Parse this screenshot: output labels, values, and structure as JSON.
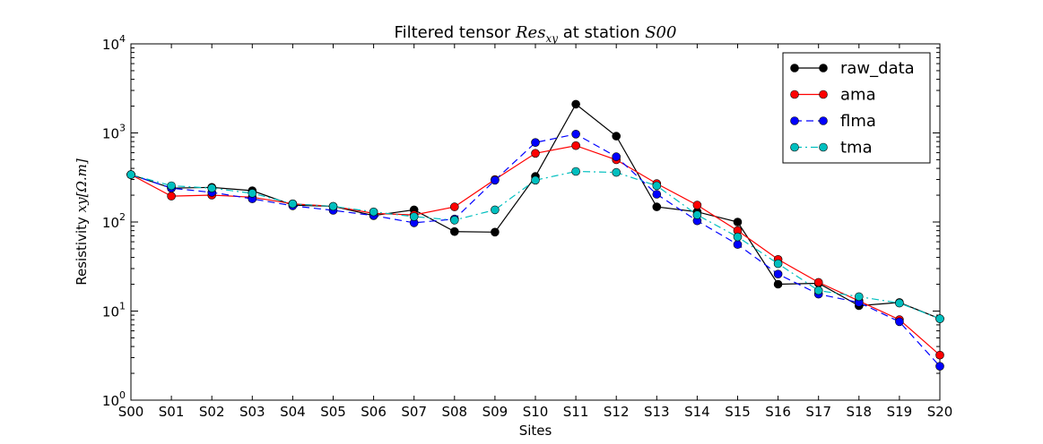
{
  "chart_data": {
    "type": "line",
    "title_prefix": "Filtered tensor ",
    "title_math": "Res",
    "title_math_sub": "xy",
    "title_mid": " at station ",
    "title_station": "S00",
    "xlabel": "Sites",
    "ylabel_prefix": "Resistivity ",
    "ylabel_math": "xy[Ω.m]",
    "y_scale": "log",
    "ylim": [
      1,
      10000
    ],
    "y_ticks": [
      {
        "value": 1,
        "base": "10",
        "exp": "0"
      },
      {
        "value": 10,
        "base": "10",
        "exp": "1"
      },
      {
        "value": 100,
        "base": "10",
        "exp": "2"
      },
      {
        "value": 1000,
        "base": "10",
        "exp": "3"
      },
      {
        "value": 10000,
        "base": "10",
        "exp": "4"
      }
    ],
    "categories": [
      "S00",
      "S01",
      "S02",
      "S03",
      "S04",
      "S05",
      "S06",
      "S07",
      "S08",
      "S09",
      "S10",
      "S11",
      "S12",
      "S13",
      "S14",
      "S15",
      "S16",
      "S17",
      "S18",
      "S19",
      "S20"
    ],
    "legend_position": "top-right",
    "grid": false,
    "series": [
      {
        "name": "raw_data",
        "color": "#000000",
        "line_style": "solid",
        "marker": "circle",
        "values": [
          340,
          240,
          245,
          225,
          155,
          150,
          118,
          137,
          78,
          77,
          325,
          2100,
          920,
          148,
          130,
          100,
          20,
          20.5,
          11.5,
          12.5,
          8.2
        ]
      },
      {
        "name": "ama",
        "color": "#ff0000",
        "line_style": "solid",
        "marker": "circle",
        "values": [
          340,
          195,
          200,
          190,
          160,
          150,
          125,
          120,
          148,
          300,
          590,
          720,
          500,
          270,
          155,
          80,
          38,
          21,
          13,
          8,
          3.2
        ]
      },
      {
        "name": "flma",
        "color": "#0000ff",
        "line_style": "dashed",
        "marker": "circle",
        "values": [
          340,
          240,
          215,
          182,
          152,
          135,
          118,
          98,
          108,
          295,
          780,
          970,
          540,
          205,
          103,
          56,
          26,
          15.5,
          12.5,
          7.6,
          2.4
        ]
      },
      {
        "name": "tma",
        "color": "#00bfbf",
        "line_style": "dashdot",
        "marker": "circle",
        "values": [
          340,
          255,
          240,
          210,
          160,
          150,
          130,
          115,
          105,
          137,
          295,
          370,
          360,
          255,
          120,
          68,
          34,
          17,
          14.5,
          12.3,
          8.2
        ]
      }
    ]
  }
}
